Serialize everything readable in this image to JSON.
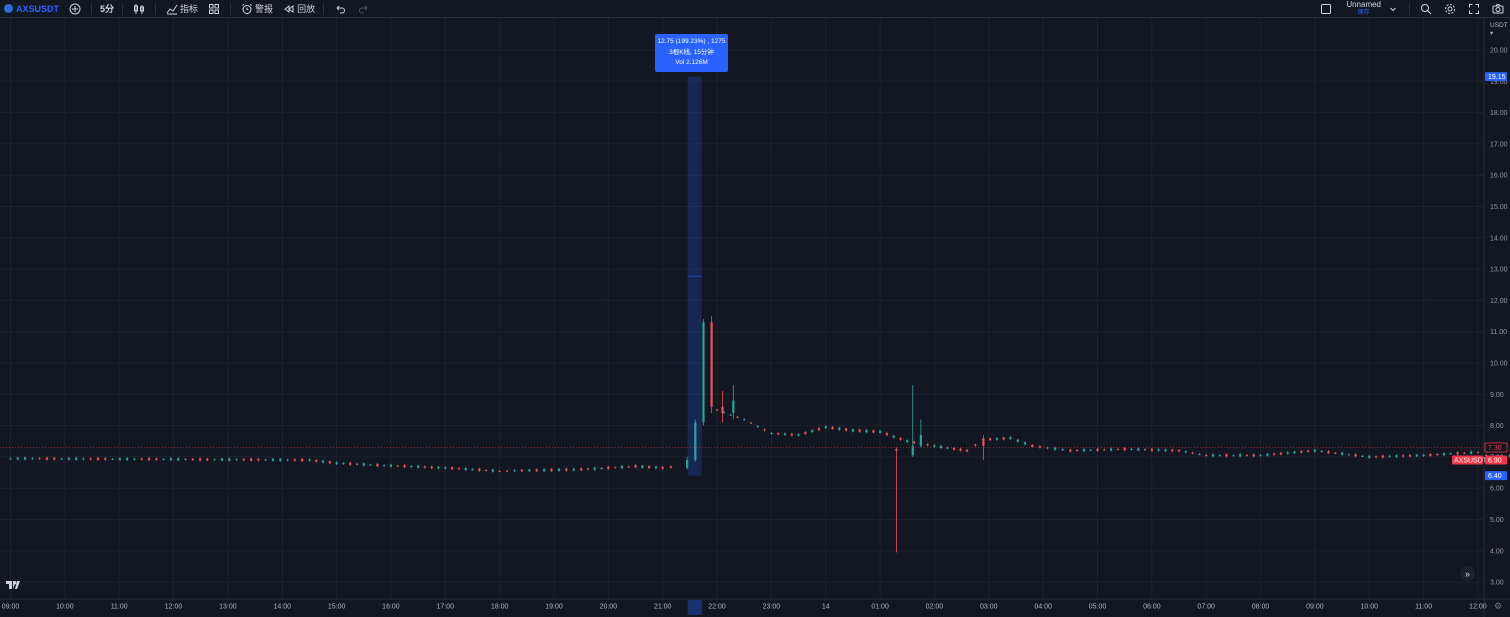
{
  "toolbar": {
    "symbol": "AXSUSDT",
    "interval": "5分",
    "indicators_label": "指标",
    "alert_label": "警报",
    "replay_label": "回放",
    "layout_name": "Unnamed",
    "layout_status": "保存"
  },
  "price_axis": {
    "currency": "USDT",
    "ticks": [
      "20.00",
      "19.00",
      "18.00",
      "17.00",
      "16.00",
      "15.00",
      "14.00",
      "13.00",
      "12.00",
      "11.00",
      "10.00",
      "9.00",
      "8.00",
      "7.00",
      "6.00",
      "5.00",
      "4.00",
      "3.00"
    ],
    "high_marker": "19.15",
    "low_marker": "6.40",
    "last_marker": "7.30",
    "symbol_marker_name": "AXSUSDT",
    "symbol_marker_price": "6.90",
    "colors": {
      "blue": "#2962ff",
      "red": "#f23645",
      "up": "#26a69a",
      "down": "#ef5350",
      "range": "#2962ff"
    }
  },
  "time_axis": {
    "ticks": [
      "09:00",
      "10:00",
      "11:00",
      "12:00",
      "13:00",
      "14:00",
      "15:00",
      "16:00",
      "17:00",
      "18:00",
      "19:00",
      "20:00",
      "21:00",
      "22:00",
      "23:00",
      "14",
      "01:00",
      "02:00",
      "03:00",
      "04:00",
      "05:00",
      "06:00",
      "07:00",
      "08:00",
      "09:00",
      "10:00",
      "11:00",
      "12:00"
    ]
  },
  "tooltip": {
    "line1": "12.75 (199.23%) , 1275",
    "line2": "3根K线, 15分钟",
    "line3": "Vol 2.126M"
  },
  "chart_data": {
    "type": "candlestick",
    "title": "AXSUSDT",
    "ylim": [
      2.6,
      20.6
    ],
    "key_points": [
      {
        "time": "09:00",
        "price": 6.95
      },
      {
        "time": "15:00",
        "price": 6.85
      },
      {
        "time": "18:00",
        "price": 6.55
      },
      {
        "time": "21:00",
        "price": 6.65
      },
      {
        "time": "21:30",
        "high": 19.15,
        "low": 6.4
      },
      {
        "time": "21:45",
        "open": 8.5,
        "high": 11.5,
        "low": 8.4,
        "close": 11.3
      },
      {
        "time": "22:00",
        "price": 8.4
      },
      {
        "time": "23:00",
        "price": 7.75
      },
      {
        "time": "01:30",
        "high": 9.3,
        "low": 3.95
      },
      {
        "time": "02:00",
        "price": 7.55
      },
      {
        "time": "05:00",
        "price": 7.1
      },
      {
        "time": "08:00",
        "price": 6.95
      },
      {
        "time": "10:00",
        "price": 7.45
      },
      {
        "time": "12:00",
        "price": 7.3
      }
    ],
    "measure": {
      "change": "12.75",
      "percent": "199.23%",
      "bars": 3,
      "duration": "15分钟",
      "volume": "2.126M"
    }
  }
}
